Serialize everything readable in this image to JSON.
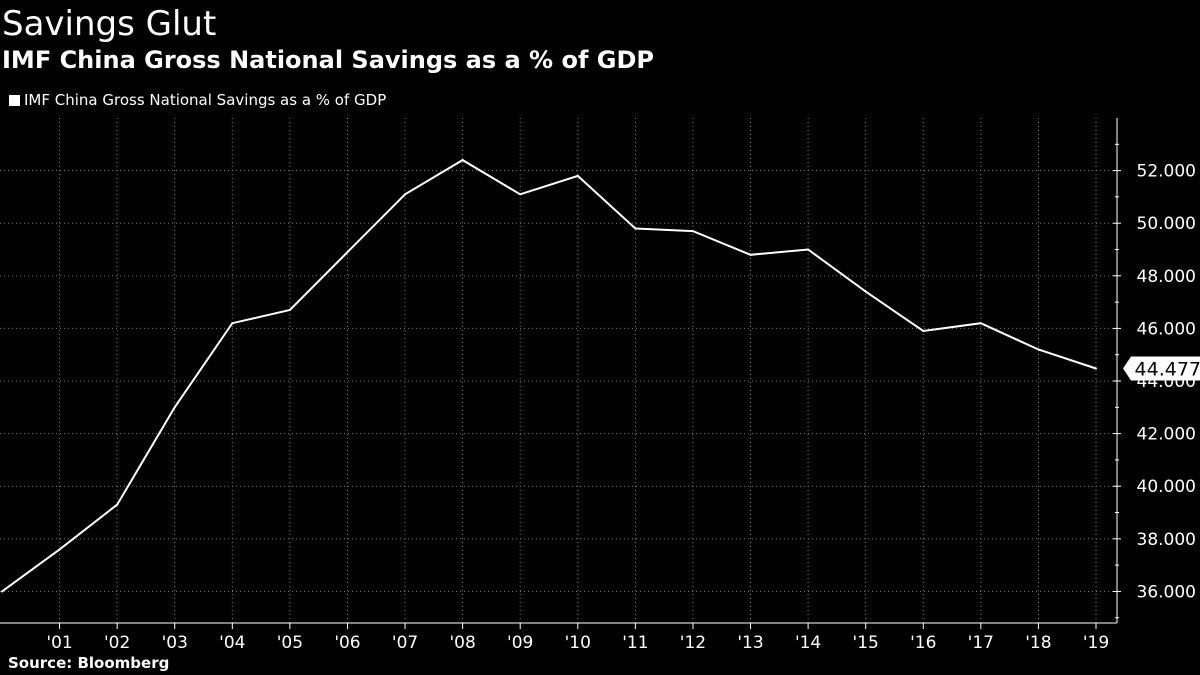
{
  "header": {
    "title": "Savings Glut",
    "subtitle": "IMF China Gross National Savings as a % of GDP"
  },
  "footer": {
    "source": "Source: Bloomberg"
  },
  "colors": {
    "background": "#000000",
    "line": "#ffffff",
    "grid": "#777777",
    "label_bg": "#ffffff",
    "label_text": "#000000"
  },
  "chart_data": {
    "type": "line",
    "title": "IMF China Gross National Savings as a % of GDP",
    "xlabel": "",
    "ylabel": "",
    "grid": true,
    "legend_position": "top-left",
    "x": [
      2000,
      2001,
      2002,
      2003,
      2004,
      2005,
      2006,
      2007,
      2008,
      2009,
      2010,
      2011,
      2012,
      2013,
      2014,
      2015,
      2016,
      2017,
      2018,
      2019
    ],
    "tick_labels": [
      "'01",
      "'02",
      "'03",
      "'04",
      "'05",
      "'06",
      "'07",
      "'08",
      "'09",
      "'10",
      "'11",
      "'12",
      "'13",
      "'14",
      "'15",
      "'16",
      "'17",
      "'18",
      "'19"
    ],
    "tick_years": [
      2001,
      2002,
      2003,
      2004,
      2005,
      2006,
      2007,
      2008,
      2009,
      2010,
      2011,
      2012,
      2013,
      2014,
      2015,
      2016,
      2017,
      2018,
      2019
    ],
    "xlim": [
      2000,
      2019.4
    ],
    "ylim": [
      34.8,
      54.0
    ],
    "yticks": [
      36,
      38,
      40,
      42,
      44,
      46,
      48,
      50,
      52
    ],
    "ytick_labels": [
      "36.000",
      "38.000",
      "40.000",
      "42.000",
      "44.000",
      "46.000",
      "48.000",
      "50.000",
      "52.000"
    ],
    "series": [
      {
        "name": "IMF China Gross National Savings as a % of GDP",
        "values": [
          36.0,
          37.6,
          39.3,
          43.0,
          46.2,
          46.7,
          48.9,
          51.1,
          52.4,
          51.1,
          51.8,
          49.8,
          49.7,
          48.8,
          49.0,
          47.4,
          45.9,
          46.2,
          45.2,
          44.477
        ]
      }
    ],
    "last_value_label": "44.477"
  }
}
